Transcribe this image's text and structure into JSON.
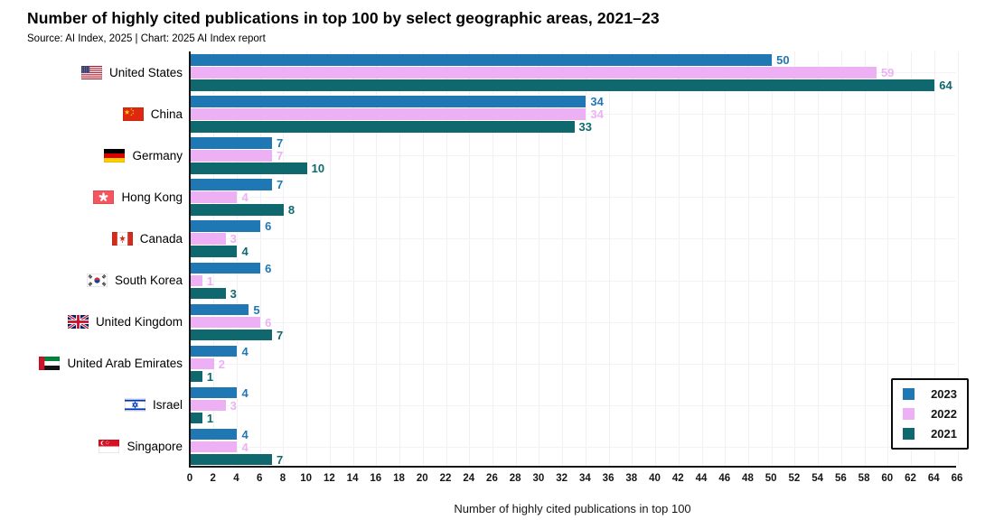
{
  "header": {
    "title": "Number of highly cited publications in top 100 by select geographic areas, 2021–23",
    "source": "Source: AI Index, 2025 | Chart: 2025 AI Index report"
  },
  "chart_data": {
    "type": "bar",
    "orientation": "horizontal",
    "title": "Number of highly cited publications in top 100 by select geographic areas, 2021–23",
    "xlabel": "Number of highly cited publications in top 100",
    "ylabel": "",
    "xlim": [
      0,
      66
    ],
    "xticks": [
      0,
      2,
      4,
      6,
      8,
      10,
      12,
      14,
      16,
      18,
      20,
      22,
      24,
      26,
      28,
      30,
      32,
      34,
      36,
      38,
      40,
      42,
      44,
      46,
      48,
      50,
      52,
      54,
      56,
      58,
      60,
      62,
      64,
      66
    ],
    "grid": true,
    "legend_position": "bottom-right",
    "categories": [
      "United States",
      "China",
      "Germany",
      "Hong Kong",
      "Canada",
      "South Korea",
      "United Kingdom",
      "United Arab Emirates",
      "Israel",
      "Singapore"
    ],
    "flags": [
      "us",
      "cn",
      "de",
      "hk",
      "ca",
      "kr",
      "gb",
      "ae",
      "il",
      "sg"
    ],
    "series": [
      {
        "name": "2023",
        "color": "#1f78b4",
        "values": [
          50,
          34,
          7,
          7,
          6,
          6,
          5,
          4,
          4,
          4
        ]
      },
      {
        "name": "2022",
        "color": "#eeb0f5",
        "values": [
          59,
          34,
          7,
          4,
          3,
          1,
          6,
          2,
          3,
          4
        ]
      },
      {
        "name": "2021",
        "color": "#0e686e",
        "values": [
          64,
          33,
          10,
          8,
          4,
          3,
          7,
          1,
          1,
          7
        ]
      }
    ]
  },
  "colors": {
    "axis": "#161616",
    "gridline": "#f1f1f5",
    "background": "#ffffff"
  }
}
